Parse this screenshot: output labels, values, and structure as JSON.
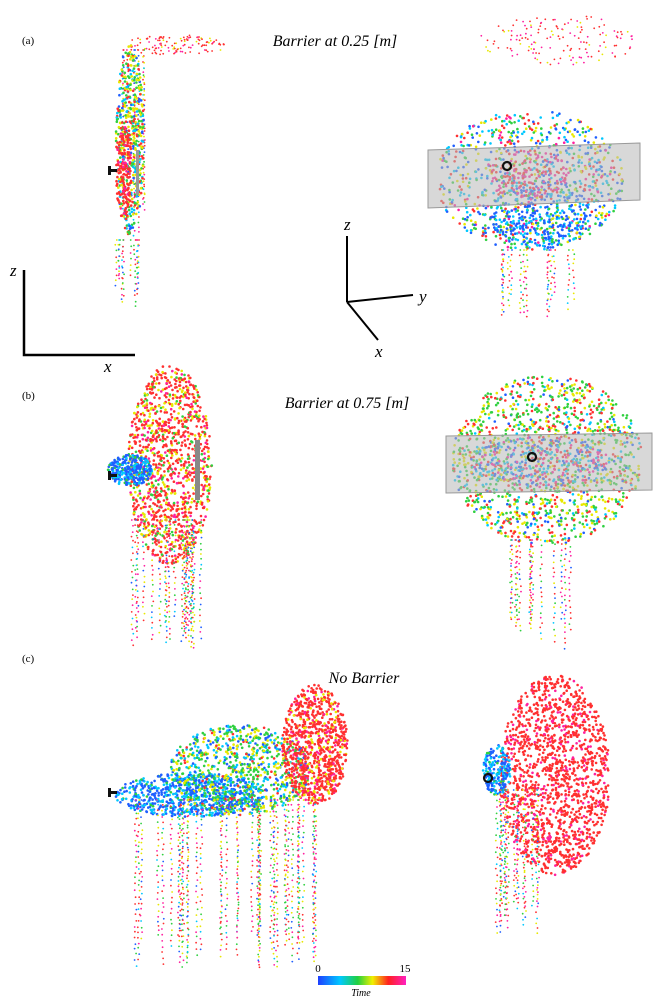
{
  "panels": [
    {
      "label": "(a)",
      "title": "Barrier at 0.25 [m]"
    },
    {
      "label": "(b)",
      "title": "Barrier at 0.75 [m]"
    },
    {
      "label": "(c)",
      "title": "No Barrier"
    }
  ],
  "axes_2d": {
    "vertical": "z",
    "horizontal": "x"
  },
  "axes_3d": {
    "up": "z",
    "right": "y",
    "down": "x"
  },
  "colorbar": {
    "ticks": [
      0,
      15
    ],
    "label": "Time"
  }
}
